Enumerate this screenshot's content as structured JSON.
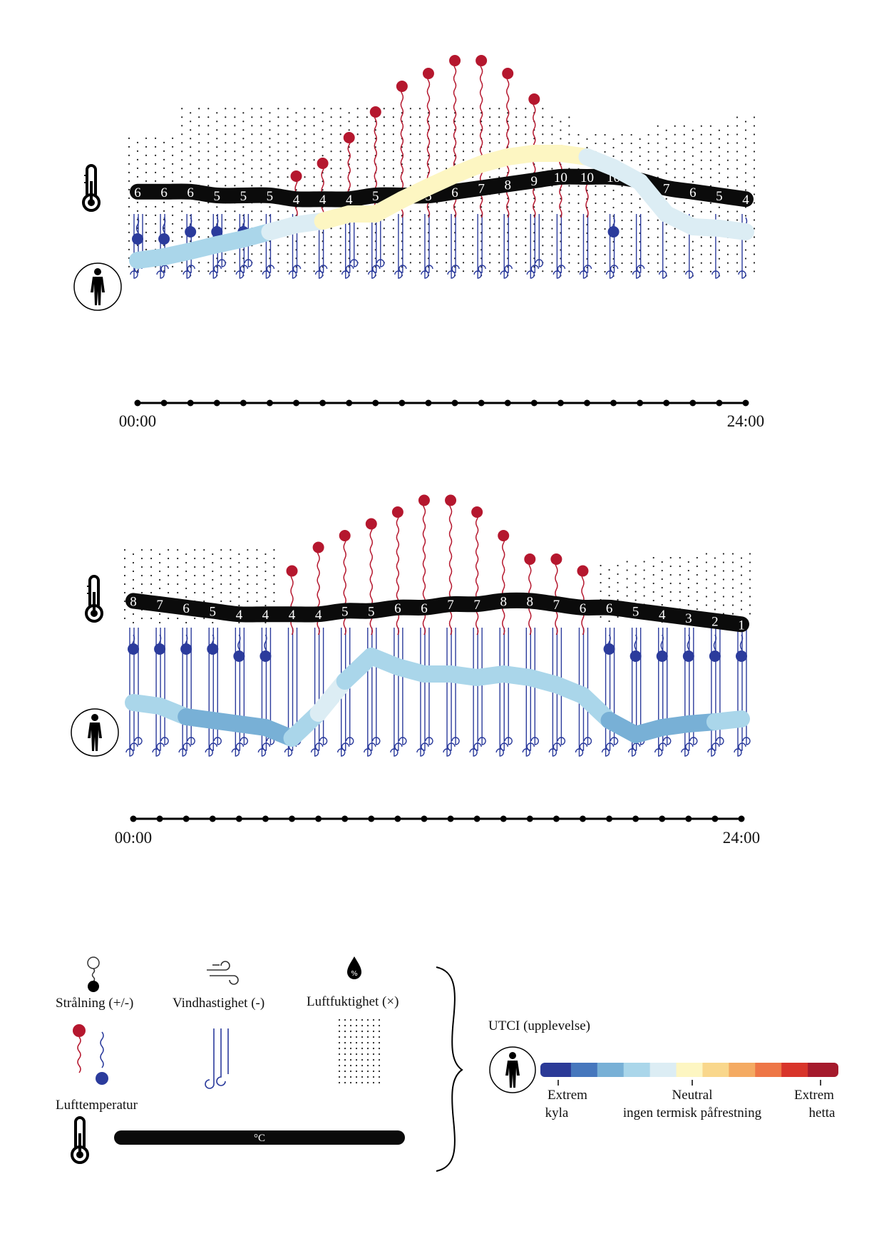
{
  "diagrams": [
    {
      "time_start": "00:00",
      "time_end": "24:00",
      "temps": [
        6,
        6,
        6,
        5,
        5,
        5,
        4,
        4,
        4,
        5,
        5,
        5,
        6,
        7,
        8,
        9,
        10,
        10,
        10,
        9,
        7,
        6,
        5,
        4
      ],
      "radiation": [
        -2,
        -2,
        -1,
        -1,
        -1,
        0,
        1,
        2,
        4,
        6,
        8,
        9,
        10,
        10,
        9,
        7,
        3,
        1,
        -1,
        0,
        0,
        0,
        0,
        -1
      ],
      "wind": [
        3,
        2,
        2,
        3,
        3,
        2,
        2,
        2,
        3,
        3,
        2,
        2,
        2,
        2,
        2,
        3,
        2,
        2,
        2,
        2,
        1,
        1,
        1,
        1
      ],
      "humidity": [
        0.78,
        0.78,
        0.95,
        0.95,
        0.95,
        0.95,
        0.95,
        0.95,
        0.95,
        0.95,
        0.95,
        0.95,
        0.95,
        0.95,
        0.95,
        0.95,
        0.9,
        0.8,
        0.8,
        0.8,
        0.85,
        0.85,
        0.85,
        0.9
      ],
      "utci": [
        3,
        3,
        3,
        3,
        3,
        4,
        4,
        5,
        5,
        5,
        5,
        5,
        5,
        5,
        5,
        5,
        5,
        4,
        4,
        4,
        4,
        4,
        4,
        4
      ]
    },
    {
      "time_start": "00:00",
      "time_end": "24:00",
      "temps": [
        8,
        7,
        6,
        5,
        4,
        4,
        4,
        4,
        5,
        5,
        6,
        6,
        7,
        7,
        8,
        8,
        7,
        6,
        6,
        5,
        4,
        3,
        2,
        1
      ],
      "radiation": [
        -1,
        -1,
        -1,
        -1,
        -2,
        -2,
        3,
        5,
        6,
        7,
        8,
        9,
        9,
        8,
        6,
        4,
        4,
        3,
        -1,
        -2,
        -2,
        -2,
        -2,
        -2
      ],
      "wind": [
        3,
        3,
        3,
        3,
        3,
        3,
        3,
        3,
        3,
        3,
        3,
        3,
        3,
        3,
        3,
        3,
        3,
        3,
        3,
        3,
        3,
        3,
        3,
        3
      ],
      "humidity": [
        0.9,
        0.9,
        0.9,
        0.9,
        0.9,
        0.9,
        0.0,
        0.0,
        0.0,
        0.0,
        0.0,
        0.0,
        0.0,
        0.0,
        0.0,
        0.0,
        0.0,
        0.0,
        0.7,
        0.75,
        0.8,
        0.8,
        0.85,
        0.85
      ],
      "utci": [
        3,
        3,
        2,
        2,
        2,
        2,
        3,
        4,
        3,
        3,
        3,
        3,
        3,
        3,
        3,
        3,
        3,
        3,
        2,
        2,
        2,
        2,
        3,
        3
      ]
    }
  ],
  "legend": {
    "radiation_label": "Strålning (+/-)",
    "wind_label": "Vindhastighet (-)",
    "humidity_label": "Luftfuktighet (×)",
    "humidity_symbol": "%",
    "air_temp_label": "Lufttemperatur",
    "temp_bar_label": "°C",
    "utci_title": "UTCI (upplevelse)",
    "scale_left_1": "Extrem",
    "scale_left_2": "kyla",
    "scale_mid_1": "Neutral",
    "scale_mid_2": "ingen termisk påfrestning",
    "scale_right_1": "Extrem",
    "scale_right_2": "hetta"
  },
  "colors": {
    "temp_band": "#0b0b0b",
    "radiation_hot": "#b5172e",
    "radiation_cold": "#2b3b9c",
    "wind": "#2b3b9c",
    "utci_scale": [
      "#2b3a97",
      "#4677bd",
      "#78b0d6",
      "#aad6ea",
      "#dcedf4",
      "#fdf6c2",
      "#f9d78c",
      "#f4aa62",
      "#ee7646",
      "#d8342a",
      "#a51a2c"
    ]
  }
}
